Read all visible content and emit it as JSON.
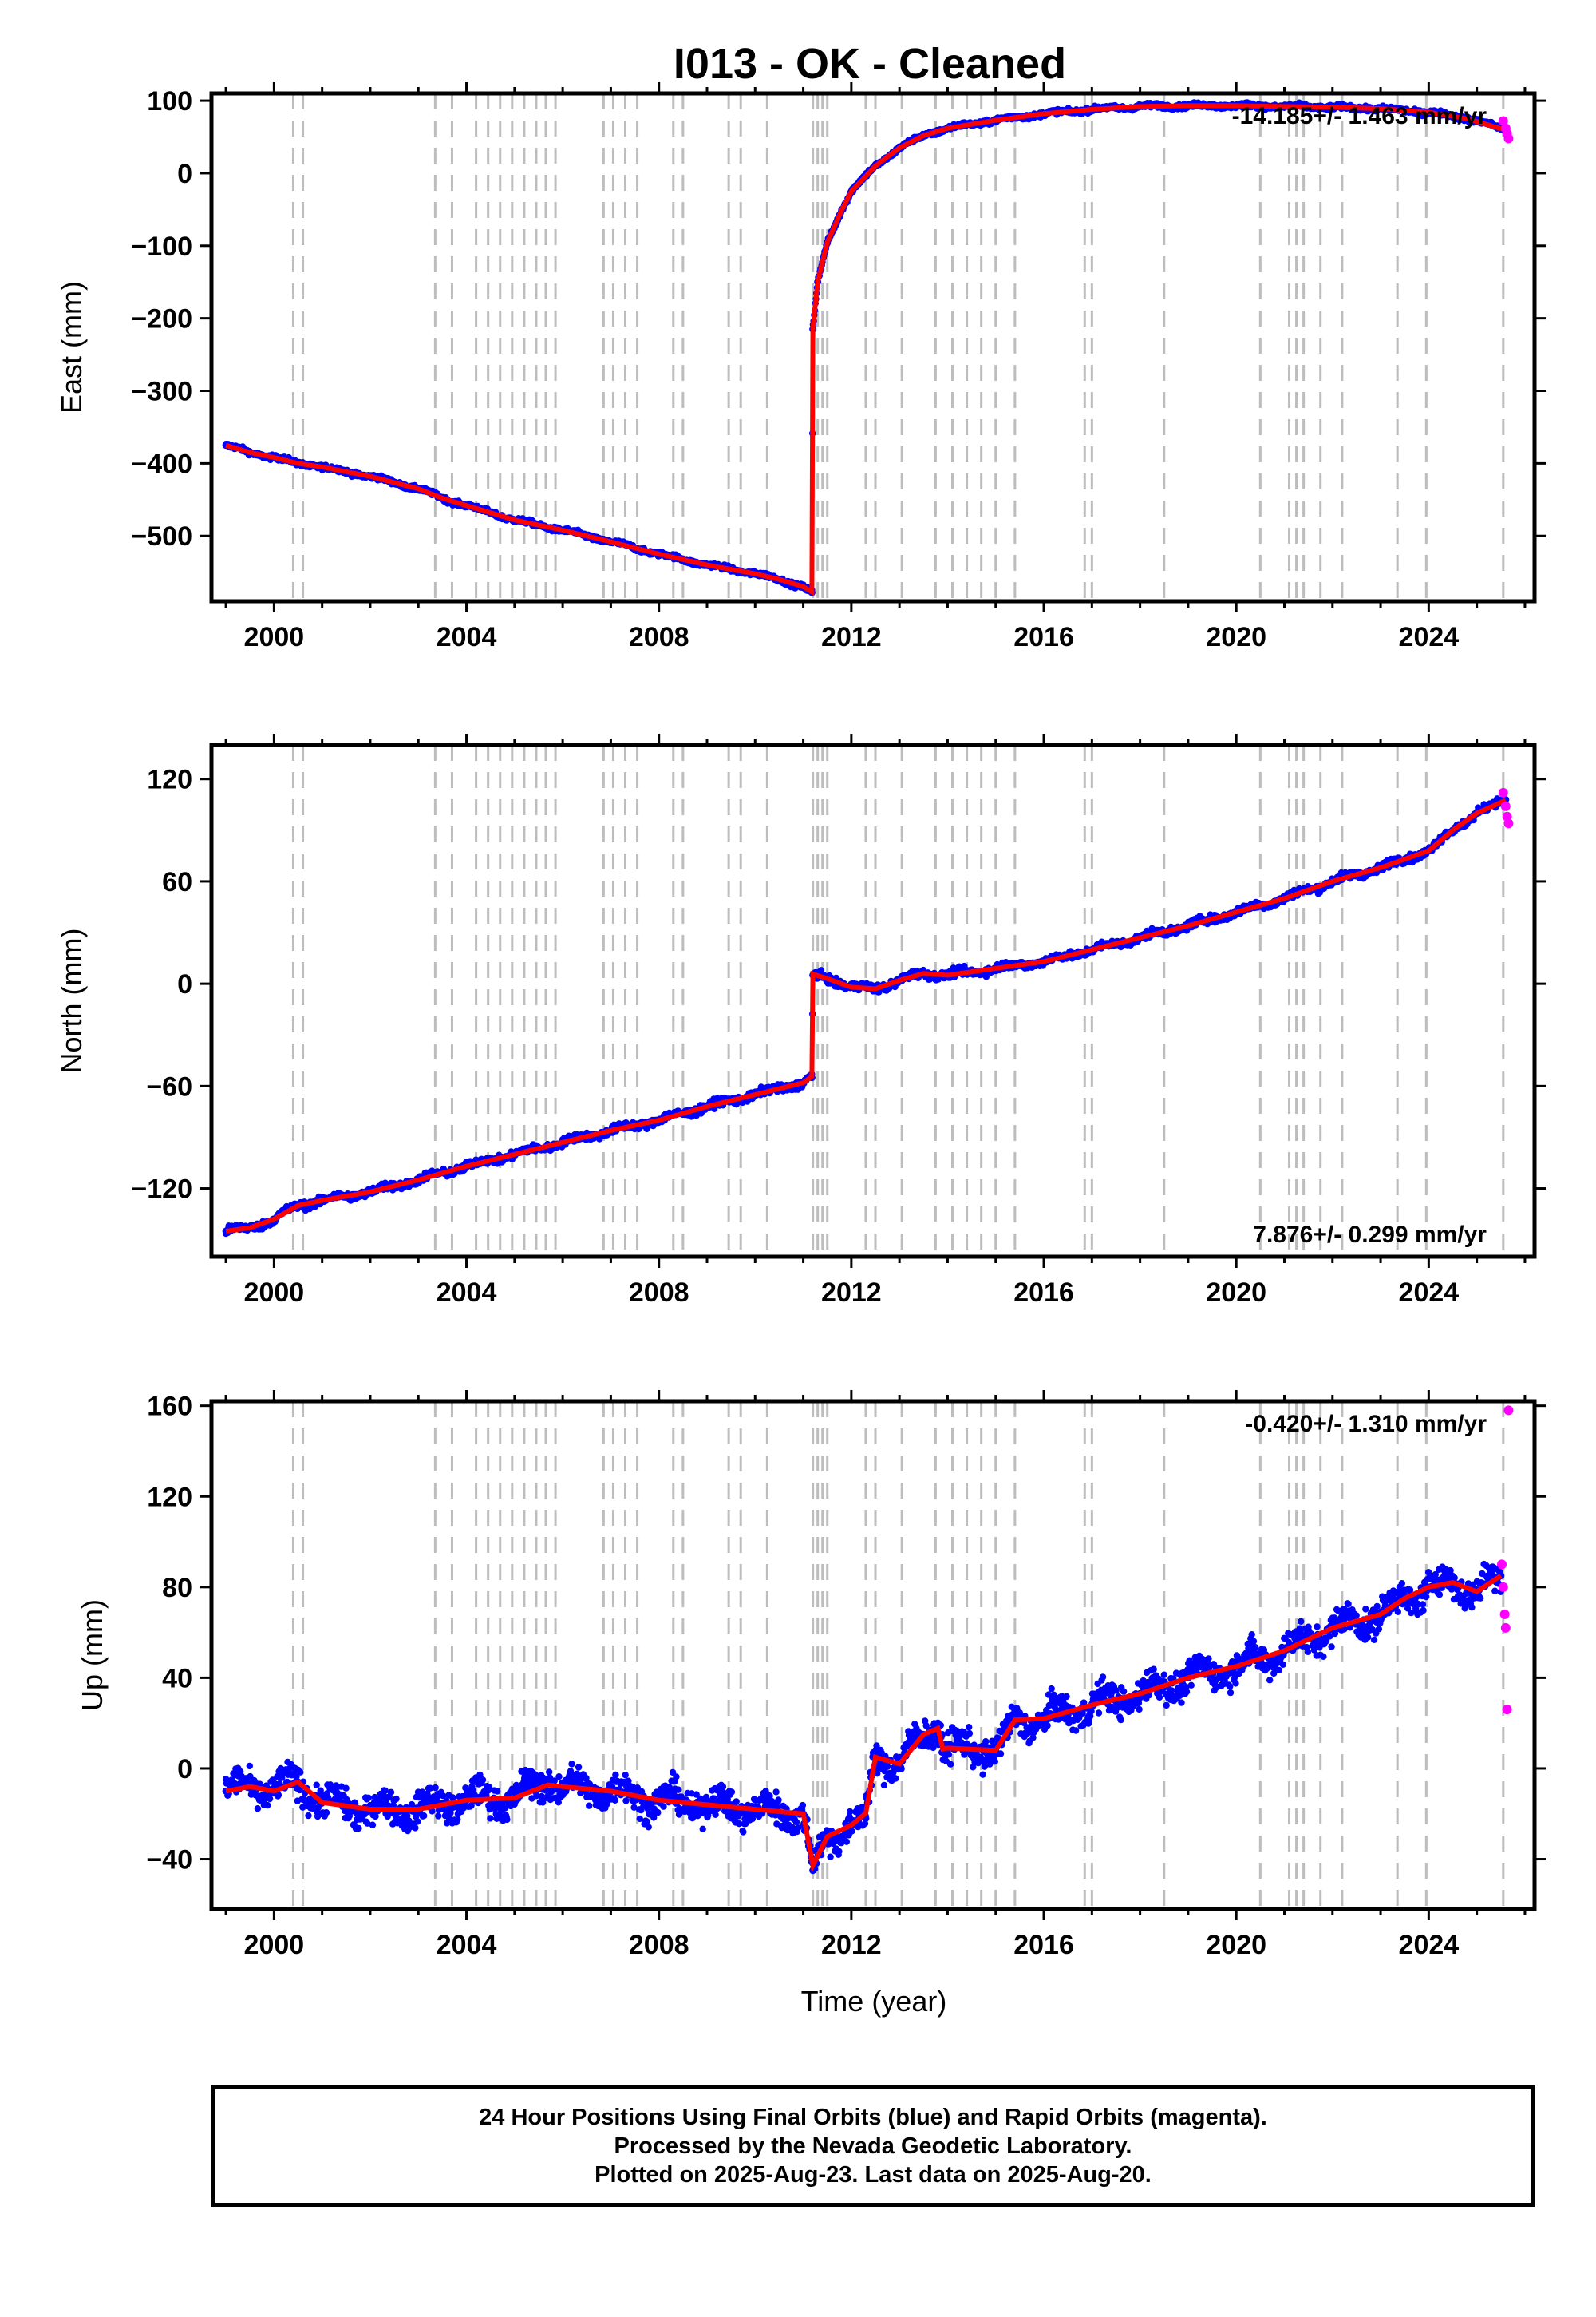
{
  "title": "I013  - OK - Cleaned",
  "footer": {
    "line1": "24 Hour Positions Using Final Orbits (blue) and Rapid Orbits (magenta).",
    "line2": "Processed by the Nevada Geodetic Laboratory.",
    "line3": "Plotted on 2025-Aug-23. Last data on 2025-Aug-20."
  },
  "colors": {
    "final": "#0000ff",
    "rapid": "#ff00ff",
    "model": "#ff0000",
    "event_lines": "#bdbdbd"
  },
  "chart_data": [
    {
      "type": "scatter",
      "panel": "east",
      "ylabel": "East (mm)",
      "xlabel": "",
      "xlim": [
        1998.7,
        2026.2
      ],
      "ylim": [
        -590,
        110
      ],
      "xticks": [
        2000,
        2004,
        2008,
        2012,
        2016,
        2020,
        2024
      ],
      "yticks": [
        100,
        0,
        -100,
        -200,
        -300,
        -400,
        -500
      ],
      "rate_text": "-14.185+/- 1.463 mm/yr",
      "rate_position": "top-right",
      "series": [
        {
          "role": "final",
          "x": [
            1999.0,
            1999.5,
            2000.0,
            2000.5,
            2001.0,
            2002.0,
            2003.0,
            2003.5,
            2004.0,
            2005.0,
            2006.0,
            2007.0,
            2008.0,
            2009.0,
            2010.0,
            2010.5,
            2011.0,
            2011.18,
            2011.2,
            2011.3,
            2011.5,
            2011.8,
            2012.0,
            2012.5,
            2013.0,
            2013.5,
            2014.0,
            2015.0,
            2016.0,
            2017.0,
            2018.0,
            2019.0,
            2020.0,
            2021.0,
            2022.0,
            2023.0,
            2024.0,
            2024.8,
            2025.6
          ],
          "y": [
            -375,
            -385,
            -392,
            -400,
            -405,
            -418,
            -435,
            -448,
            -458,
            -478,
            -492,
            -508,
            -525,
            -540,
            -552,
            -560,
            -570,
            -578,
            -215,
            -150,
            -95,
            -50,
            -25,
            10,
            35,
            52,
            62,
            73,
            82,
            88,
            92,
            93,
            93,
            92,
            91,
            89,
            84,
            76,
            60
          ]
        },
        {
          "role": "rapid",
          "x": [
            2025.55,
            2025.6,
            2025.63,
            2025.66
          ],
          "y": [
            72,
            62,
            55,
            48
          ]
        },
        {
          "role": "model",
          "x": [
            1999.0,
            1999.5,
            2000.0,
            2000.5,
            2001.0,
            2002.0,
            2003.0,
            2003.5,
            2004.0,
            2005.0,
            2006.0,
            2007.0,
            2008.0,
            2009.0,
            2010.0,
            2010.5,
            2011.0,
            2011.18,
            2011.2,
            2011.3,
            2011.5,
            2011.8,
            2012.0,
            2012.5,
            2013.0,
            2013.5,
            2014.0,
            2015.0,
            2016.0,
            2017.0,
            2018.0,
            2019.0,
            2020.0,
            2021.0,
            2022.0,
            2023.0,
            2024.0,
            2024.8,
            2025.6
          ],
          "y": [
            -375,
            -385,
            -392,
            -400,
            -405,
            -418,
            -435,
            -448,
            -458,
            -478,
            -492,
            -508,
            -525,
            -540,
            -552,
            -560,
            -570,
            -578,
            -215,
            -150,
            -95,
            -50,
            -25,
            10,
            35,
            52,
            62,
            73,
            82,
            88,
            92,
            93,
            93,
            92,
            91,
            89,
            84,
            76,
            60
          ]
        }
      ]
    },
    {
      "type": "scatter",
      "panel": "north",
      "ylabel": "North (mm)",
      "xlabel": "",
      "xlim": [
        1998.7,
        2026.2
      ],
      "ylim": [
        -160,
        140
      ],
      "xticks": [
        2000,
        2004,
        2008,
        2012,
        2016,
        2020,
        2024
      ],
      "yticks": [
        120,
        60,
        0,
        -60,
        -120
      ],
      "rate_text": "7.876+/- 0.299 mm/yr",
      "rate_position": "bottom-right",
      "series": [
        {
          "role": "final",
          "x": [
            1999.0,
            1999.5,
            2000.0,
            2000.5,
            2001.0,
            2002.0,
            2003.0,
            2004.0,
            2005.0,
            2006.0,
            2007.0,
            2008.0,
            2009.0,
            2010.0,
            2011.0,
            2011.18,
            2011.2,
            2011.5,
            2012.0,
            2012.5,
            2013.0,
            2013.5,
            2014.0,
            2015.0,
            2016.0,
            2017.0,
            2018.0,
            2019.0,
            2020.0,
            2021.0,
            2022.0,
            2023.0,
            2024.0,
            2024.5,
            2025.0,
            2025.6
          ],
          "y": [
            -145,
            -143,
            -138,
            -130,
            -127,
            -122,
            -115,
            -107,
            -100,
            -93,
            -86,
            -80,
            -72,
            -65,
            -58,
            -55,
            5,
            3,
            -2,
            -3,
            2,
            6,
            5,
            9,
            13,
            20,
            27,
            34,
            42,
            50,
            60,
            68,
            78,
            90,
            100,
            108
          ]
        },
        {
          "role": "rapid",
          "x": [
            2025.55,
            2025.6,
            2025.63,
            2025.66
          ],
          "y": [
            112,
            104,
            98,
            94
          ]
        },
        {
          "role": "model",
          "x": [
            1999.0,
            1999.5,
            2000.0,
            2000.5,
            2001.0,
            2002.0,
            2003.0,
            2004.0,
            2005.0,
            2006.0,
            2007.0,
            2008.0,
            2009.0,
            2010.0,
            2011.0,
            2011.18,
            2011.2,
            2011.5,
            2012.0,
            2012.5,
            2013.0,
            2013.5,
            2014.0,
            2015.0,
            2016.0,
            2017.0,
            2018.0,
            2019.0,
            2020.0,
            2021.0,
            2022.0,
            2023.0,
            2024.0,
            2024.5,
            2025.0,
            2025.6
          ],
          "y": [
            -145,
            -143,
            -138,
            -130,
            -127,
            -122,
            -115,
            -107,
            -100,
            -93,
            -86,
            -80,
            -72,
            -65,
            -58,
            -55,
            5,
            3,
            -2,
            -3,
            2,
            6,
            5,
            9,
            13,
            20,
            27,
            34,
            42,
            50,
            60,
            68,
            78,
            90,
            100,
            108
          ]
        }
      ]
    },
    {
      "type": "scatter",
      "panel": "up",
      "ylabel": "Up (mm)",
      "xlabel": "Time (year)",
      "xlim": [
        1998.7,
        2026.2
      ],
      "ylim": [
        -62,
        162
      ],
      "xticks": [
        2000,
        2004,
        2008,
        2012,
        2016,
        2020,
        2024
      ],
      "yticks": [
        160,
        120,
        80,
        40,
        0,
        -40
      ],
      "rate_text": "-0.420+/- 1.310 mm/yr",
      "rate_position": "top-right",
      "series": [
        {
          "role": "final",
          "x": [
            1999.0,
            1999.5,
            2000.0,
            2000.5,
            2001.0,
            2002.0,
            2003.0,
            2004.0,
            2005.0,
            2005.7,
            2006.0,
            2007.0,
            2008.0,
            2009.0,
            2010.0,
            2011.0,
            2011.2,
            2011.5,
            2012.0,
            2012.3,
            2012.5,
            2013.0,
            2013.5,
            2013.8,
            2013.9,
            2014.0,
            2015.0,
            2015.4,
            2016.0,
            2017.0,
            2018.0,
            2019.0,
            2020.0,
            2021.0,
            2022.0,
            2023.0,
            2023.5,
            2024.0,
            2024.5,
            2025.0,
            2025.5
          ],
          "y": [
            -10,
            -8,
            -10,
            -6,
            -15,
            -18,
            -18,
            -14,
            -13,
            -5,
            -8,
            -10,
            -14,
            -16,
            -18,
            -20,
            -45,
            -30,
            -25,
            -22,
            5,
            2,
            15,
            20,
            10,
            9,
            8,
            20,
            22,
            28,
            33,
            40,
            45,
            52,
            62,
            68,
            75,
            80,
            82,
            78,
            85
          ]
        },
        {
          "role": "rapid",
          "x": [
            2025.52,
            2025.55,
            2025.58,
            2025.6,
            2025.63,
            2025.66
          ],
          "y": [
            90,
            80,
            68,
            62,
            26,
            158
          ]
        },
        {
          "role": "model",
          "x": [
            1999.0,
            1999.5,
            2000.0,
            2000.5,
            2001.0,
            2002.0,
            2003.0,
            2004.0,
            2005.0,
            2005.7,
            2006.0,
            2007.0,
            2008.0,
            2009.0,
            2010.0,
            2011.0,
            2011.2,
            2011.5,
            2012.0,
            2012.3,
            2012.5,
            2013.0,
            2013.5,
            2013.8,
            2013.9,
            2014.0,
            2015.0,
            2015.4,
            2016.0,
            2017.0,
            2018.0,
            2019.0,
            2020.0,
            2021.0,
            2022.0,
            2023.0,
            2023.5,
            2024.0,
            2024.5,
            2025.0,
            2025.5
          ],
          "y": [
            -10,
            -8,
            -10,
            -6,
            -15,
            -18,
            -18,
            -14,
            -13,
            -5,
            -8,
            -10,
            -14,
            -16,
            -18,
            -20,
            -45,
            -30,
            -25,
            -22,
            5,
            2,
            15,
            20,
            10,
            9,
            8,
            20,
            22,
            28,
            33,
            40,
            45,
            52,
            62,
            68,
            75,
            80,
            82,
            78,
            85
          ]
        }
      ]
    }
  ],
  "event_lines_x": [
    2000.4,
    2000.6,
    2003.35,
    2003.7,
    2004.2,
    2004.45,
    2004.7,
    2004.95,
    2005.2,
    2005.45,
    2005.65,
    2005.85,
    2006.85,
    2007.05,
    2007.3,
    2007.55,
    2008.3,
    2008.5,
    2009.45,
    2009.7,
    2010.25,
    2011.2,
    2011.3,
    2011.4,
    2011.5,
    2012.3,
    2012.5,
    2013.05,
    2013.75,
    2014.1,
    2014.4,
    2014.7,
    2015.0,
    2015.4,
    2016.85,
    2017.0,
    2018.5,
    2020.5,
    2021.1,
    2021.25,
    2021.4,
    2021.75,
    2022.2,
    2023.35,
    2023.95,
    2025.55
  ]
}
